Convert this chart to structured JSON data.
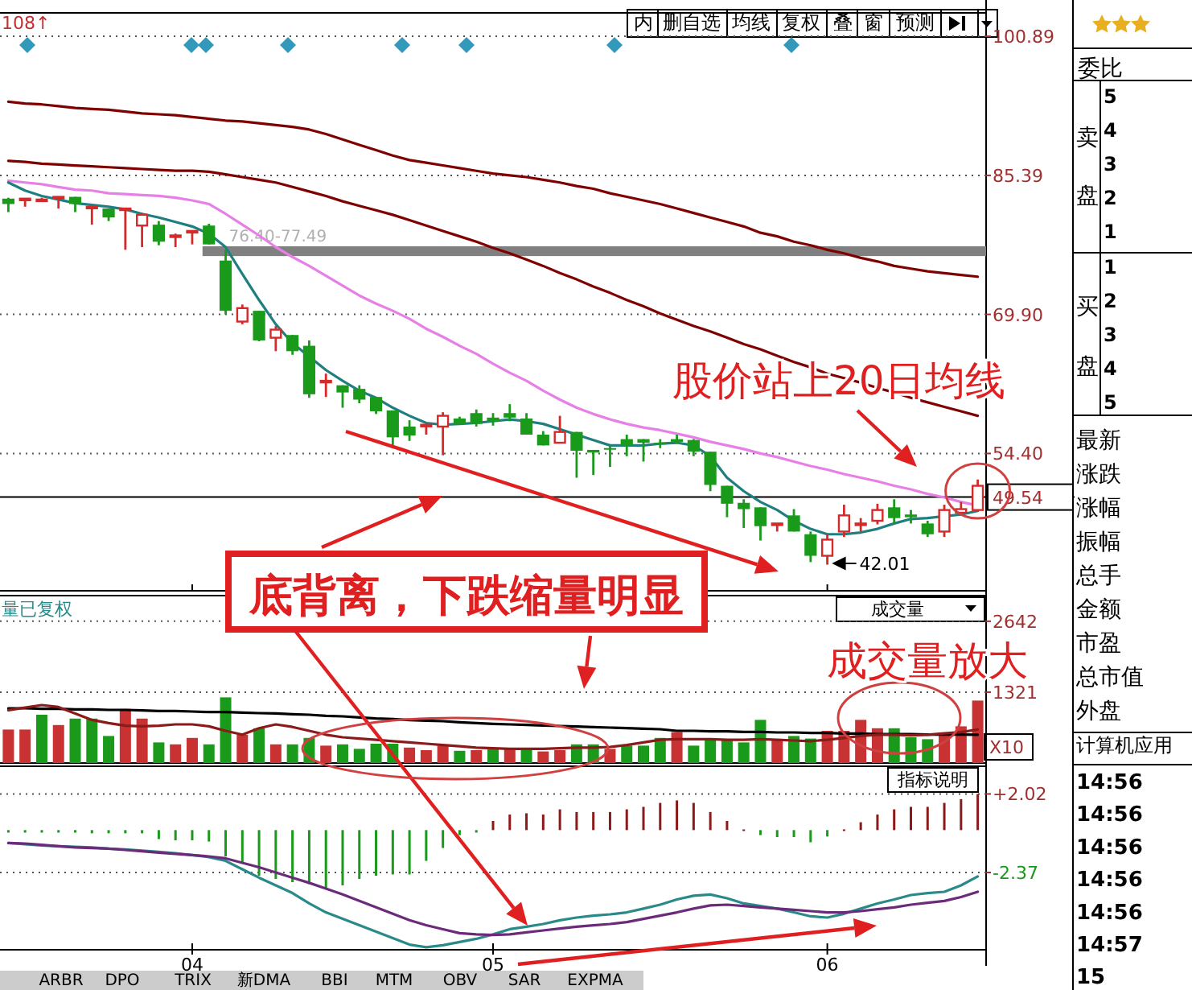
{
  "chart_data": [
    {
      "type": "candlestick",
      "categories": [
        null,
        null,
        null,
        null,
        null,
        null,
        null,
        null,
        null,
        null,
        null,
        "04",
        null,
        null,
        null,
        null,
        null,
        null,
        null,
        null,
        null,
        null,
        null,
        null,
        null,
        null,
        null,
        null,
        null,
        "05",
        null,
        null,
        null,
        null,
        null,
        null,
        null,
        null,
        null,
        null,
        null,
        null,
        null,
        null,
        null,
        null,
        null,
        null,
        null,
        "06",
        null,
        null,
        null,
        null,
        null,
        null,
        null,
        null,
        null
      ],
      "ohlc": [
        [
          82.8,
          82.9,
          81.3,
          82.2
        ],
        [
          82.8,
          82.8,
          81.9,
          82.8
        ],
        [
          82.7,
          82.9,
          82.5,
          82.7
        ],
        [
          83.0,
          83.0,
          81.7,
          83.0
        ],
        [
          83.0,
          83.0,
          81.3,
          82.2
        ],
        [
          81.9,
          81.9,
          79.9,
          81.9
        ],
        [
          81.7,
          81.7,
          80.3,
          80.7
        ],
        [
          81.7,
          81.7,
          77.1,
          81.7
        ],
        [
          79.8,
          81.2,
          77.4,
          81.0
        ],
        [
          79.9,
          80.3,
          77.6,
          78.0
        ],
        [
          78.7,
          78.9,
          77.4,
          78.7
        ],
        [
          79.2,
          79.2,
          77.7,
          79.2
        ],
        [
          79.8,
          80.0,
          77.7,
          77.7
        ],
        [
          75.9,
          77.1,
          69.9,
          70.3
        ],
        [
          69.1,
          71.0,
          68.8,
          70.6
        ],
        [
          70.3,
          70.3,
          66.9,
          67.0
        ],
        [
          67.3,
          68.6,
          65.8,
          68.2
        ],
        [
          67.6,
          67.6,
          65.4,
          65.8
        ],
        [
          66.4,
          67.0,
          60.6,
          61.0
        ],
        [
          62.5,
          63.3,
          60.7,
          62.5
        ],
        [
          62.0,
          62.0,
          59.5,
          61.2
        ],
        [
          61.6,
          62.0,
          60.0,
          60.4
        ],
        [
          60.7,
          60.7,
          58.8,
          59.1
        ],
        [
          59.2,
          59.2,
          55.2,
          56.2
        ],
        [
          57.4,
          58.1,
          55.8,
          56.4
        ],
        [
          57.6,
          57.6,
          56.5,
          57.6
        ],
        [
          57.4,
          59.0,
          54.2,
          58.6
        ],
        [
          58.3,
          58.5,
          57.7,
          57.7
        ],
        [
          58.9,
          59.3,
          57.4,
          57.7
        ],
        [
          58.4,
          58.9,
          57.5,
          58.0
        ],
        [
          58.9,
          59.9,
          58.0,
          58.4
        ],
        [
          58.3,
          58.9,
          56.5,
          56.5
        ],
        [
          56.5,
          56.9,
          55.3,
          55.3
        ],
        [
          55.6,
          58.6,
          55.6,
          56.8
        ],
        [
          56.8,
          56.8,
          51.7,
          54.7
        ],
        [
          54.8,
          54.8,
          52.0,
          54.5
        ],
        [
          55.0,
          55.3,
          52.9,
          54.9
        ],
        [
          56.0,
          56.5,
          54.1,
          55.3
        ],
        [
          56.0,
          56.0,
          53.5,
          55.6
        ],
        [
          55.6,
          56.0,
          55.0,
          55.4
        ],
        [
          56.0,
          56.5,
          55.5,
          55.7
        ],
        [
          55.9,
          56.0,
          54.1,
          54.6
        ],
        [
          54.6,
          54.6,
          50.2,
          50.9
        ],
        [
          50.8,
          50.8,
          47.3,
          48.8
        ],
        [
          48.9,
          49.3,
          46.1,
          48.2
        ],
        [
          48.4,
          48.4,
          44.7,
          46.3
        ],
        [
          46.6,
          46.6,
          45.7,
          46.6
        ],
        [
          47.5,
          48.2,
          45.7,
          45.7
        ],
        [
          45.4,
          45.7,
          42.3,
          43.0
        ],
        [
          43.0,
          45.4,
          42.01,
          44.8
        ],
        [
          45.7,
          48.7,
          45.1,
          47.5
        ],
        [
          46.6,
          47.2,
          45.7,
          46.6
        ],
        [
          46.9,
          48.8,
          46.5,
          48.1
        ],
        [
          48.4,
          49.3,
          46.6,
          47.2
        ],
        [
          47.6,
          48.1,
          46.6,
          47.3
        ],
        [
          46.6,
          46.9,
          45.1,
          45.4
        ],
        [
          45.7,
          48.7,
          45.1,
          48.1
        ],
        [
          47.8,
          49.0,
          47.8,
          48.2
        ],
        [
          48.1,
          51.5,
          48.1,
          50.8
        ]
      ],
      "series": [
        {
          "type": "line",
          "color": "#7f0000",
          "values": [
            93.6,
            93.4,
            93.3,
            93.1,
            92.9,
            92.8,
            92.7,
            92.5,
            92.3,
            92.2,
            92.1,
            91.9,
            91.7,
            91.5,
            91.4,
            91.2,
            91.0,
            90.8,
            90.5,
            90.0,
            89.4,
            88.8,
            88.2,
            87.6,
            87.1,
            86.8,
            86.5,
            86.2,
            85.9,
            85.6,
            85.4,
            85.2,
            84.9,
            84.6,
            84.2,
            83.9,
            83.4,
            83.0,
            82.6,
            82.2,
            81.7,
            81.2,
            80.7,
            80.2,
            79.7,
            79.0,
            78.6,
            78.0,
            77.6,
            77.1,
            76.7,
            76.2,
            75.8,
            75.3,
            75.0,
            74.7,
            74.5,
            74.3,
            74.1
          ]
        },
        {
          "type": "line",
          "color": "#7f0000",
          "values": [
            87.0,
            86.9,
            86.7,
            86.6,
            86.5,
            86.4,
            86.3,
            86.2,
            86.1,
            86.0,
            85.9,
            85.9,
            85.8,
            85.5,
            85.2,
            84.9,
            84.6,
            84.1,
            83.6,
            83.1,
            82.5,
            82.0,
            81.5,
            81.0,
            80.4,
            79.8,
            79.2,
            78.6,
            78.0,
            77.3,
            76.7,
            76.0,
            75.3,
            74.5,
            73.8,
            73.0,
            72.3,
            71.5,
            70.8,
            70.0,
            69.3,
            68.6,
            68.0,
            67.3,
            66.6,
            66.0,
            65.3,
            64.6,
            64.0,
            63.3,
            62.8,
            62.3,
            61.7,
            61.2,
            60.6,
            60.1,
            59.6,
            59.1,
            58.6
          ]
        },
        {
          "type": "line",
          "color": "#e680e6",
          "values": [
            84.8,
            84.6,
            84.4,
            84.1,
            83.8,
            83.7,
            83.4,
            83.3,
            83.2,
            83.1,
            82.9,
            82.6,
            82.2,
            81.1,
            79.9,
            78.7,
            77.4,
            76.3,
            75.3,
            74.2,
            73.1,
            72.0,
            71.1,
            70.3,
            69.4,
            68.3,
            67.4,
            66.4,
            65.5,
            64.4,
            63.4,
            62.5,
            61.4,
            60.4,
            59.5,
            58.8,
            58.2,
            57.7,
            57.3,
            57.0,
            56.6,
            56.2,
            55.7,
            55.3,
            54.9,
            54.4,
            54.0,
            53.5,
            53.0,
            52.6,
            52.1,
            51.7,
            51.3,
            50.8,
            50.4,
            49.9,
            49.5,
            49.0,
            48.6
          ]
        },
        {
          "type": "line",
          "color": "#1f7f80",
          "values": [
            84.6,
            83.7,
            83.1,
            82.7,
            82.3,
            82.1,
            81.9,
            81.6,
            81.1,
            80.7,
            80.2,
            79.7,
            78.9,
            77.4,
            74.4,
            71.5,
            68.8,
            66.7,
            65.2,
            63.7,
            62.5,
            61.4,
            60.6,
            59.5,
            58.6,
            57.8,
            57.6,
            57.7,
            57.8,
            58.0,
            58.2,
            58.0,
            57.7,
            57.1,
            56.5,
            55.9,
            55.3,
            55.3,
            55.3,
            55.5,
            55.6,
            55.3,
            54.1,
            51.7,
            50.2,
            49.0,
            48.1,
            46.9,
            46.0,
            45.4,
            45.4,
            45.6,
            46.0,
            46.6,
            47.1,
            47.2,
            47.4,
            47.6,
            48.0
          ]
        }
      ],
      "ylim": [
        39.1,
        103.5
      ],
      "yticks": [
        100.89,
        85.39,
        {
          "value": 69.9,
          "label": "69.90"
        },
        {
          "value": 54.4,
          "label": "54.40"
        }
      ],
      "ref_lines": [
        {
          "axis": "y",
          "value": 49.54,
          "label": "49.54",
          "color": "#000000"
        }
      ],
      "bands": [
        {
          "axis": "y",
          "from": 76.4,
          "to": 77.49,
          "label": "76.40-77.49",
          "color": "#808080"
        }
      ],
      "grid": "y",
      "tick_labels": "y",
      "annotations": [
        "108↑",
        "42.01",
        "股价站上20日均线",
        "底背离，下跌缩量明显"
      ]
    },
    {
      "type": "bar",
      "categories": [
        null,
        null,
        null,
        null,
        null,
        null,
        null,
        null,
        null,
        null,
        null,
        "04",
        null,
        null,
        null,
        null,
        null,
        null,
        null,
        null,
        null,
        null,
        null,
        null,
        null,
        null,
        null,
        null,
        null,
        "05",
        null,
        null,
        null,
        null,
        null,
        null,
        null,
        null,
        null,
        null,
        null,
        null,
        null,
        null,
        null,
        null,
        null,
        null,
        null,
        "06",
        null,
        null,
        null,
        null,
        null,
        null,
        null,
        null,
        null
      ],
      "series": [
        {
          "type": "bar",
          "values": [
            624,
            624,
            900,
            708,
            828,
            828,
            504,
            1008,
            828,
            384,
            348,
            468,
            348,
            1224,
            528,
            648,
            348,
            348,
            468,
            324,
            348,
            264,
            360,
            360,
            288,
            240,
            324,
            228,
            240,
            264,
            264,
            240,
            216,
            240,
            348,
            348,
            264,
            324,
            324,
            468,
            576,
            324,
            420,
            420,
            384,
            804,
            432,
            504,
            456,
            600,
            600,
            804,
            648,
            648,
            480,
            444,
            564,
            684,
            1164
          ],
          "colors": [
            "#c83232",
            "#c83232",
            "#1a9a1a",
            "#c83232",
            "#1a9a1a",
            "#1a9a1a",
            "#1a9a1a",
            "#c83232",
            "#c83232",
            "#1a9a1a",
            "#c83232",
            "#c83232",
            "#1a9a1a",
            "#1a9a1a",
            "#c83232",
            "#1a9a1a",
            "#c83232",
            "#1a9a1a",
            "#1a9a1a",
            "#c83232",
            "#1a9a1a",
            "#1a9a1a",
            "#1a9a1a",
            "#1a9a1a",
            "#c83232",
            "#c83232",
            "#c83232",
            "#1a9a1a",
            "#c83232",
            "#1a9a1a",
            "#c83232",
            "#1a9a1a",
            "#c83232",
            "#c83232",
            "#1a9a1a",
            "#1a9a1a",
            "#c83232",
            "#1a9a1a",
            "#1a9a1a",
            "#1a9a1a",
            "#c83232",
            "#1a9a1a",
            "#1a9a1a",
            "#1a9a1a",
            "#1a9a1a",
            "#1a9a1a",
            "#c83232",
            "#1a9a1a",
            "#1a9a1a",
            "#c83232",
            "#c83232",
            "#c83232",
            "#c83232",
            "#1a9a1a",
            "#1a9a1a",
            "#1a9a1a",
            "#c83232",
            "#c83232",
            "#c83232"
          ]
        },
        {
          "type": "line",
          "color": "#000000",
          "values": [
            1020,
            1020,
            1010,
            1010,
            1000,
            1000,
            990,
            990,
            980,
            970,
            970,
            960,
            950,
            950,
            940,
            930,
            924,
            910,
            900,
            880,
            870,
            850,
            830,
            820,
            800,
            790,
            780,
            760,
            744,
            730,
            720,
            710,
            700,
            690,
            680,
            670,
            660,
            650,
            640,
            630,
            600,
            600,
            590,
            590,
            580,
            580,
            570,
            570,
            560,
            560,
            550,
            550,
            540,
            540,
            540,
            530,
            530,
            530,
            528
          ]
        },
        {
          "type": "line",
          "color": "#8b1a1a",
          "values": [
            984,
            1032,
            1080,
            1044,
            924,
            804,
            744,
            696,
            684,
            696,
            720,
            720,
            684,
            600,
            528,
            648,
            720,
            672,
            600,
            528,
            480,
            456,
            432,
            408,
            384,
            360,
            336,
            312,
            288,
            276,
            264,
            264,
            264,
            276,
            288,
            288,
            300,
            336,
            384,
            432,
            444,
            444,
            444,
            432,
            432,
            444,
            432,
            420,
            408,
            432,
            468,
            504,
            528,
            528,
            516,
            528,
            552,
            576,
            624
          ]
        }
      ],
      "ylim": [
        0,
        3120
      ],
      "yticks": [
        1321,
        2642
      ],
      "grid": "y",
      "tick_labels": "y",
      "annotations": [
        "量已复权",
        "成交量",
        "X10",
        "成交量放大"
      ]
    },
    {
      "type": "bar",
      "categories": [
        null,
        null,
        null,
        null,
        null,
        null,
        null,
        null,
        null,
        null,
        null,
        "04",
        null,
        null,
        null,
        null,
        null,
        null,
        null,
        null,
        null,
        null,
        null,
        null,
        null,
        null,
        null,
        null,
        null,
        "05",
        null,
        null,
        null,
        null,
        null,
        null,
        null,
        null,
        null,
        null,
        null,
        null,
        null,
        null,
        null,
        null,
        null,
        null,
        null,
        "06",
        null,
        null,
        null,
        null,
        null,
        null,
        null,
        null,
        null
      ],
      "series": [
        {
          "type": "bar",
          "values": [
            -0.14,
            -0.14,
            -0.14,
            -0.14,
            -0.14,
            -0.18,
            -0.18,
            -0.18,
            -0.18,
            -0.5,
            -0.57,
            -0.57,
            -0.64,
            -1.47,
            -1.83,
            -2.55,
            -2.73,
            -2.91,
            -3.02,
            -3.27,
            -3.09,
            -2.73,
            -2.55,
            -2.48,
            -2.48,
            -1.72,
            -1.0,
            -0.28,
            -0.14,
            0.51,
            0.87,
            0.94,
            0.87,
            1.16,
            1.01,
            1.01,
            1.01,
            1.16,
            1.3,
            1.52,
            1.66,
            1.52,
            1.01,
            0.51,
            0.04,
            -0.28,
            -0.39,
            -0.39,
            -0.68,
            -0.36,
            0.04,
            0.44,
            0.87,
            1.16,
            1.3,
            1.3,
            1.52,
            1.73,
            2.02
          ],
          "colors": [
            "#1a9a1a",
            "#1a9a1a",
            "#1a9a1a",
            "#1a9a1a",
            "#1a9a1a",
            "#1a9a1a",
            "#1a9a1a",
            "#1a9a1a",
            "#1a9a1a",
            "#1a9a1a",
            "#1a9a1a",
            "#1a9a1a",
            "#1a9a1a",
            "#1a9a1a",
            "#1a9a1a",
            "#1a9a1a",
            "#1a9a1a",
            "#1a9a1a",
            "#1a9a1a",
            "#1a9a1a",
            "#1a9a1a",
            "#1a9a1a",
            "#1a9a1a",
            "#1a9a1a",
            "#1a9a1a",
            "#1a9a1a",
            "#1a9a1a",
            "#1a9a1a",
            "#1a9a1a",
            "#8b1a1a",
            "#8b1a1a",
            "#8b1a1a",
            "#8b1a1a",
            "#8b1a1a",
            "#8b1a1a",
            "#8b1a1a",
            "#8b1a1a",
            "#8b1a1a",
            "#8b1a1a",
            "#8b1a1a",
            "#8b1a1a",
            "#8b1a1a",
            "#8b1a1a",
            "#8b1a1a",
            "#8b1a1a",
            "#1a9a1a",
            "#1a9a1a",
            "#1a9a1a",
            "#1a9a1a",
            "#1a9a1a",
            "#8b1a1a",
            "#8b1a1a",
            "#8b1a1a",
            "#8b1a1a",
            "#8b1a1a",
            "#8b1a1a",
            "#8b1a1a",
            "#8b1a1a",
            "#8b1a1a"
          ]
        },
        {
          "type": "line",
          "color": "#2a8a8a",
          "values": [
            -0.72,
            -0.79,
            -0.86,
            -0.9,
            -0.93,
            -0.97,
            -1.04,
            -1.08,
            -1.15,
            -1.22,
            -1.29,
            -1.4,
            -1.51,
            -1.72,
            -2.19,
            -2.66,
            -3.09,
            -3.52,
            -4.1,
            -4.6,
            -4.96,
            -5.32,
            -5.68,
            -6.04,
            -6.4,
            -6.55,
            -6.44,
            -6.26,
            -6.08,
            -5.83,
            -5.54,
            -5.4,
            -5.25,
            -5.04,
            -4.89,
            -4.78,
            -4.71,
            -4.6,
            -4.39,
            -4.17,
            -3.88,
            -3.67,
            -3.6,
            -3.81,
            -4.1,
            -4.24,
            -4.39,
            -4.6,
            -4.82,
            -4.89,
            -4.68,
            -4.39,
            -4.1,
            -3.88,
            -3.63,
            -3.52,
            -3.45,
            -3.09,
            -2.59
          ]
        },
        {
          "type": "line",
          "color": "#6b2a7a",
          "values": [
            -0.72,
            -0.75,
            -0.82,
            -0.9,
            -0.97,
            -1.0,
            -1.04,
            -1.11,
            -1.18,
            -1.26,
            -1.33,
            -1.4,
            -1.47,
            -1.58,
            -1.83,
            -2.08,
            -2.37,
            -2.66,
            -2.95,
            -3.27,
            -3.6,
            -3.96,
            -4.32,
            -4.68,
            -5.04,
            -5.32,
            -5.54,
            -5.76,
            -5.83,
            -5.86,
            -5.83,
            -5.72,
            -5.61,
            -5.5,
            -5.4,
            -5.32,
            -5.25,
            -5.14,
            -4.96,
            -4.78,
            -4.6,
            -4.39,
            -4.21,
            -4.17,
            -4.24,
            -4.32,
            -4.39,
            -4.46,
            -4.53,
            -4.6,
            -4.6,
            -4.53,
            -4.42,
            -4.32,
            -4.17,
            -4.06,
            -3.96,
            -3.74,
            -3.45
          ]
        }
      ],
      "ylim": [
        -6.69,
        3.57
      ],
      "yticks": [
        {
          "value": 2.02,
          "label": "+2.02"
        },
        -2.37
      ],
      "grid": "y",
      "annotations": [
        "指标说明"
      ]
    },
    {
      "type": "other",
      "annotations": [
        "委比",
        "卖",
        "盘",
        "5",
        "4",
        "3",
        "2",
        "1",
        "买",
        "盘",
        "1",
        "2",
        "3",
        "4",
        "5",
        "最新",
        "涨跌",
        "涨幅",
        "振幅",
        "总手",
        "金额",
        "市盈",
        "总市值",
        "外盘",
        "计算机应用",
        "14:56",
        "14:56",
        "14:56",
        "14:56",
        "14:56",
        "14:57",
        "15",
        "内",
        "删自选",
        "均线",
        "复权",
        "叠",
        "窗",
        "预测",
        "ARBR",
        "DPO",
        "TRIX",
        "新DMA",
        "BBI",
        "MTM",
        "OBV",
        "SAR",
        "EXPMA"
      ]
    }
  ]
}
